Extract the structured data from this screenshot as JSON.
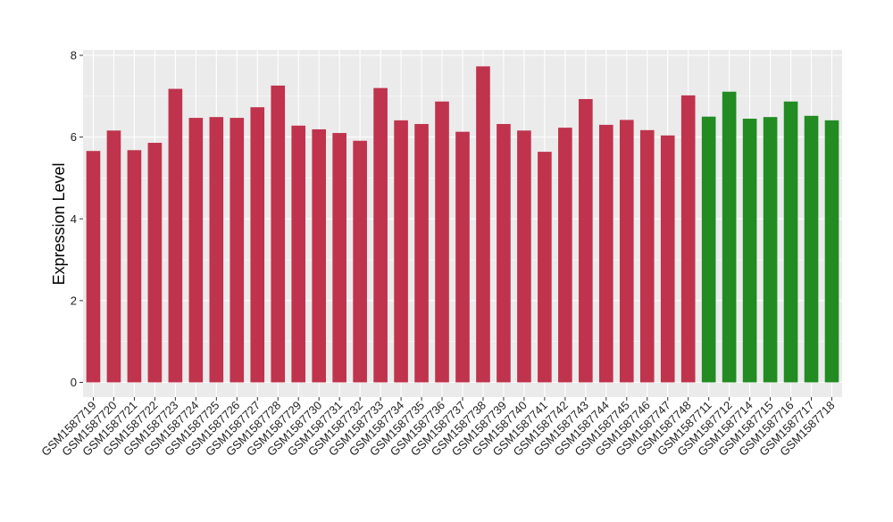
{
  "chart_data": {
    "type": "bar",
    "title": "",
    "xlabel": "",
    "ylabel": "Expression Level",
    "ylim": [
      0,
      8
    ],
    "yticks": [
      0,
      2,
      4,
      6,
      8
    ],
    "grid": true,
    "legend": "none",
    "categories": [
      "GSM1587719",
      "GSM1587720",
      "GSM1587721",
      "GSM1587722",
      "GSM1587723",
      "GSM1587724",
      "GSM1587725",
      "GSM1587726",
      "GSM1587727",
      "GSM1587728",
      "GSM1587729",
      "GSM1587730",
      "GSM1587731",
      "GSM1587732",
      "GSM1587733",
      "GSM1587734",
      "GSM1587735",
      "GSM1587736",
      "GSM1587737",
      "GSM1587738",
      "GSM1587739",
      "GSM1587740",
      "GSM1587741",
      "GSM1587742",
      "GSM1587743",
      "GSM1587744",
      "GSM1587745",
      "GSM1587746",
      "GSM1587747",
      "GSM1587748",
      "GSM1587711",
      "GSM1587712",
      "GSM1587714",
      "GSM1587715",
      "GSM1587716",
      "GSM1587717",
      "GSM1587718"
    ],
    "values": [
      5.66,
      6.16,
      5.68,
      5.86,
      7.18,
      6.47,
      6.49,
      6.47,
      6.73,
      7.26,
      6.28,
      6.19,
      6.1,
      5.91,
      7.2,
      6.41,
      6.32,
      6.87,
      6.13,
      7.73,
      6.32,
      6.16,
      5.64,
      6.23,
      6.93,
      6.3,
      6.42,
      6.17,
      6.04,
      7.02,
      6.5,
      7.11,
      6.45,
      6.49,
      6.87,
      6.52,
      6.41
    ],
    "bar_colors": [
      "#c0334d",
      "#c0334d",
      "#c0334d",
      "#c0334d",
      "#c0334d",
      "#c0334d",
      "#c0334d",
      "#c0334d",
      "#c0334d",
      "#c0334d",
      "#c0334d",
      "#c0334d",
      "#c0334d",
      "#c0334d",
      "#c0334d",
      "#c0334d",
      "#c0334d",
      "#c0334d",
      "#c0334d",
      "#c0334d",
      "#c0334d",
      "#c0334d",
      "#c0334d",
      "#c0334d",
      "#c0334d",
      "#c0334d",
      "#c0334d",
      "#c0334d",
      "#c0334d",
      "#c0334d",
      "#228b22",
      "#228b22",
      "#228b22",
      "#228b22",
      "#228b22",
      "#228b22",
      "#228b22"
    ],
    "panel_background": "#ebebeb",
    "grid_color": "#ffffff"
  }
}
